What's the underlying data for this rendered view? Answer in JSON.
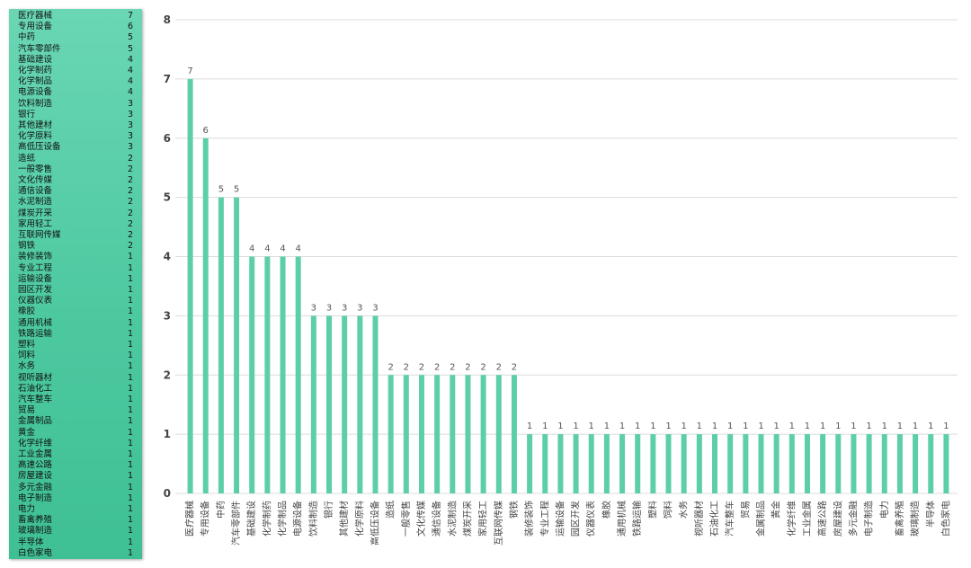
{
  "legend": {
    "items": [
      {
        "name": "医疗器械",
        "value": "7"
      },
      {
        "name": "专用设备",
        "value": "6"
      },
      {
        "name": "中药",
        "value": "5"
      },
      {
        "name": "汽车零部件",
        "value": "5"
      },
      {
        "name": "基础建设",
        "value": "4"
      },
      {
        "name": "化学制药",
        "value": "4"
      },
      {
        "name": "化学制品",
        "value": "4"
      },
      {
        "name": "电源设备",
        "value": "4"
      },
      {
        "name": "饮料制造",
        "value": "3"
      },
      {
        "name": "银行",
        "value": "3"
      },
      {
        "name": "其他建材",
        "value": "3"
      },
      {
        "name": "化学原料",
        "value": "3"
      },
      {
        "name": "高低压设备",
        "value": "3"
      },
      {
        "name": "造纸",
        "value": "2"
      },
      {
        "name": "一般零售",
        "value": "2"
      },
      {
        "name": "文化传媒",
        "value": "2"
      },
      {
        "name": "通信设备",
        "value": "2"
      },
      {
        "name": "水泥制造",
        "value": "2"
      },
      {
        "name": "煤炭开采",
        "value": "2"
      },
      {
        "name": "家用轻工",
        "value": "2"
      },
      {
        "name": "互联网传媒",
        "value": "2"
      },
      {
        "name": "钢铁",
        "value": "2"
      },
      {
        "name": "装修装饰",
        "value": "1"
      },
      {
        "name": "专业工程",
        "value": "1"
      },
      {
        "name": "运输设备",
        "value": "1"
      },
      {
        "name": "园区开发",
        "value": "1"
      },
      {
        "name": "仪器仪表",
        "value": "1"
      },
      {
        "name": "橡胶",
        "value": "1"
      },
      {
        "name": "通用机械",
        "value": "1"
      },
      {
        "name": "铁路运输",
        "value": "1"
      },
      {
        "name": "塑料",
        "value": "1"
      },
      {
        "name": "饲料",
        "value": "1"
      },
      {
        "name": "水务",
        "value": "1"
      },
      {
        "name": "视听器材",
        "value": "1"
      },
      {
        "name": "石油化工",
        "value": "1"
      },
      {
        "name": "汽车整车",
        "value": "1"
      },
      {
        "name": "贸易",
        "value": "1"
      },
      {
        "name": "金属制品",
        "value": "1"
      },
      {
        "name": "黄金",
        "value": "1"
      },
      {
        "name": "化学纤维",
        "value": "1"
      },
      {
        "name": "工业金属",
        "value": "1"
      },
      {
        "name": "高速公路",
        "value": "1"
      },
      {
        "name": "房屋建设",
        "value": "1"
      },
      {
        "name": "多元金融",
        "value": "1"
      },
      {
        "name": "电子制造",
        "value": "1"
      },
      {
        "name": "电力",
        "value": "1"
      },
      {
        "name": "畜禽养殖",
        "value": "1"
      },
      {
        "name": "玻璃制造",
        "value": "1"
      },
      {
        "name": "半导体",
        "value": "1"
      },
      {
        "name": "白色家电",
        "value": "1"
      }
    ]
  },
  "chart_data": {
    "type": "bar",
    "title": "",
    "xlabel": "",
    "ylabel": "",
    "ylim": [
      0,
      8
    ],
    "yticks": [
      "0",
      "1",
      "2",
      "3",
      "4",
      "5",
      "6",
      "7",
      "8"
    ],
    "grid": true,
    "bar_color": "#5ccfaa",
    "categories": [
      "医疗器械",
      "专用设备",
      "中药",
      "汽车零部件",
      "基础建设",
      "化学制药",
      "化学制品",
      "电源设备",
      "饮料制造",
      "银行",
      "其他建材",
      "化学原料",
      "高低压设备",
      "造纸",
      "一般零售",
      "文化传媒",
      "通信设备",
      "水泥制造",
      "煤炭开采",
      "家用轻工",
      "互联网传媒",
      "钢铁",
      "装修装饰",
      "专业工程",
      "运输设备",
      "园区开发",
      "仪器仪表",
      "橡胶",
      "通用机械",
      "铁路运输",
      "塑料",
      "饲料",
      "水务",
      "视听器材",
      "石油化工",
      "汽车整车",
      "贸易",
      "金属制品",
      "黄金",
      "化学纤维",
      "工业金属",
      "高速公路",
      "房屋建设",
      "多元金融",
      "电子制造",
      "电力",
      "畜禽养殖",
      "玻璃制造",
      "半导体",
      "白色家电"
    ],
    "values": [
      7,
      6,
      5,
      5,
      4,
      4,
      4,
      4,
      3,
      3,
      3,
      3,
      3,
      2,
      2,
      2,
      2,
      2,
      2,
      2,
      2,
      2,
      1,
      1,
      1,
      1,
      1,
      1,
      1,
      1,
      1,
      1,
      1,
      1,
      1,
      1,
      1,
      1,
      1,
      1,
      1,
      1,
      1,
      1,
      1,
      1,
      1,
      1,
      1,
      1
    ]
  }
}
